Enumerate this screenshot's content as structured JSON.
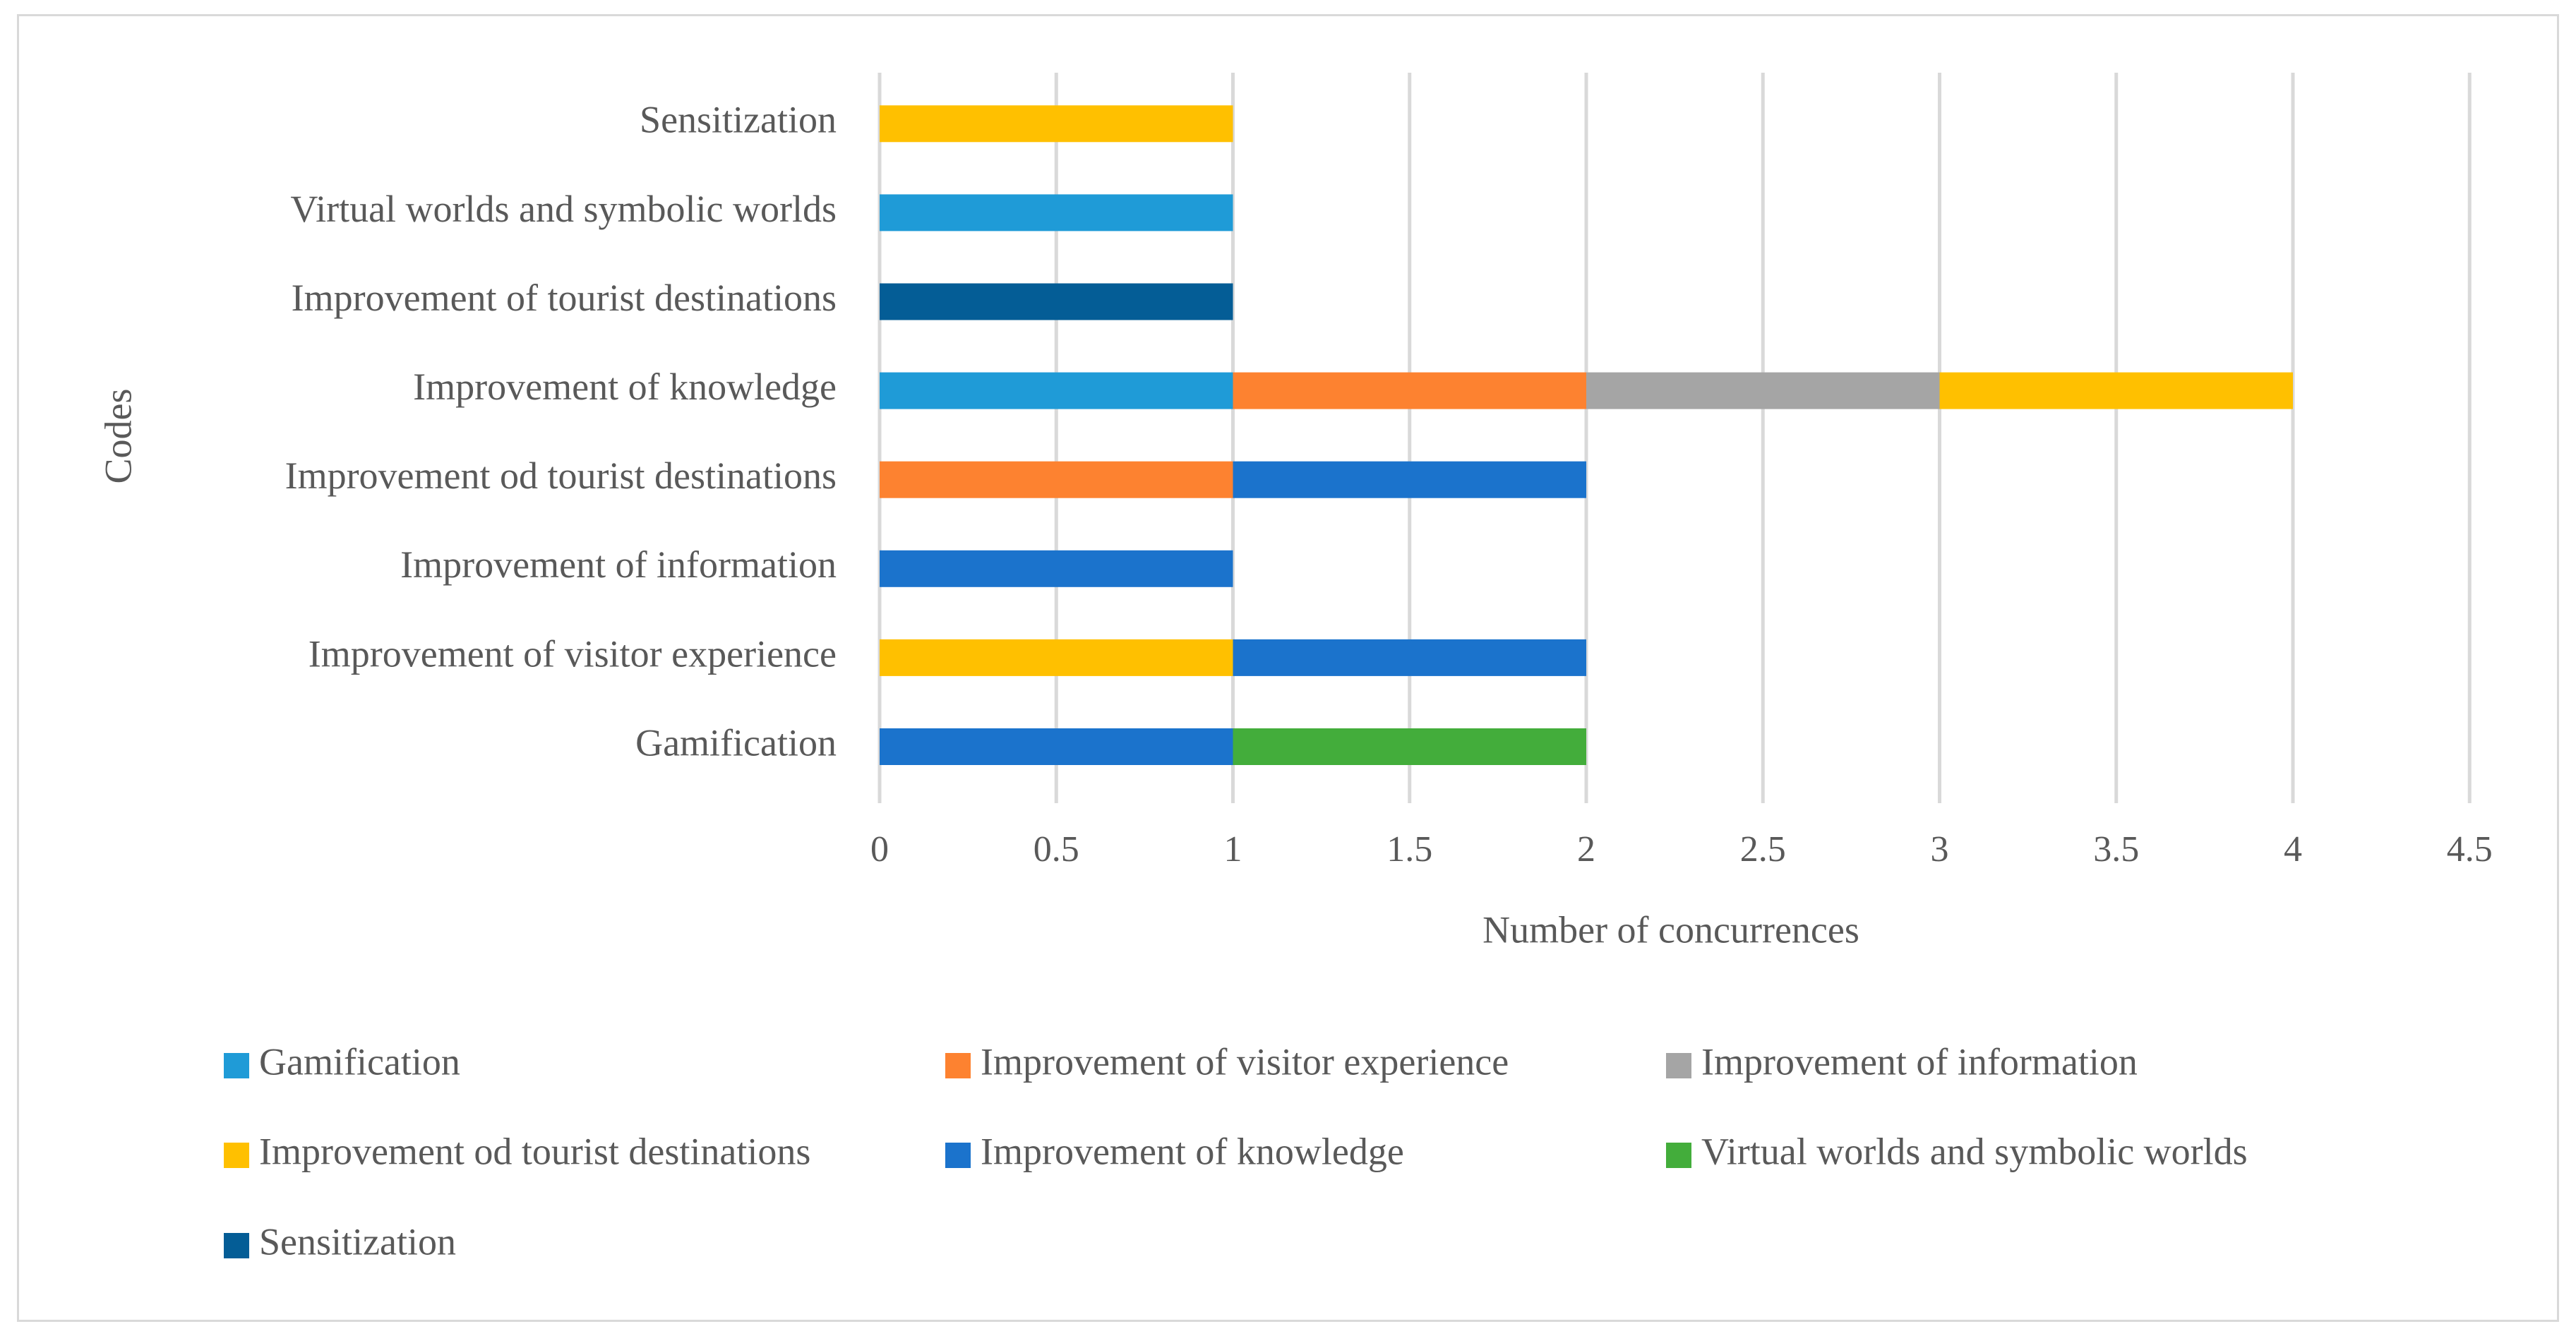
{
  "chart_data": {
    "type": "bar",
    "orientation": "horizontal",
    "stacked": true,
    "title": "",
    "xlabel": "Number of concurrences",
    "ylabel": "Codes",
    "xlim": [
      0,
      4.5
    ],
    "x_ticks": [
      "0",
      "0.5",
      "1",
      "1.5",
      "2",
      "2.5",
      "3",
      "3.5",
      "4",
      "4.5"
    ],
    "grid": "vertical",
    "legend_position": "bottom",
    "categories": [
      "Gamification",
      "Improvement of visitor experience",
      "Improvement of information",
      "Improvement od tourist destinations",
      "Improvement of knowledge",
      "Improvement of  tourist destinations",
      "Virtual worlds and symbolic worlds",
      "Sensitization"
    ],
    "series": [
      {
        "name": "Gamification",
        "color": "#1f9bd7",
        "values": [
          0,
          0,
          0,
          0,
          1,
          0,
          1,
          0
        ]
      },
      {
        "name": "Improvement of visitor experience",
        "color": "#fd8230",
        "values": [
          0,
          0,
          0,
          1,
          1,
          0,
          0,
          0
        ]
      },
      {
        "name": "Improvement of information",
        "color": "#a5a5a5",
        "values": [
          0,
          0,
          0,
          0,
          1,
          0,
          0,
          0
        ]
      },
      {
        "name": "Improvement od tourist destinations",
        "color": "#ffc000",
        "values": [
          0,
          1,
          0,
          0,
          1,
          0,
          0,
          1
        ]
      },
      {
        "name": "Improvement of knowledge",
        "color": "#1b73cc",
        "values": [
          1,
          1,
          1,
          1,
          0,
          0,
          0,
          0
        ]
      },
      {
        "name": "Virtual worlds and symbolic worlds",
        "color": "#43ad3b",
        "values": [
          1,
          0,
          0,
          0,
          0,
          0,
          0,
          0
        ]
      },
      {
        "name": "Sensitization",
        "color": "#045d96",
        "values": [
          0,
          0,
          0,
          0,
          0,
          1,
          0,
          0
        ]
      }
    ]
  }
}
